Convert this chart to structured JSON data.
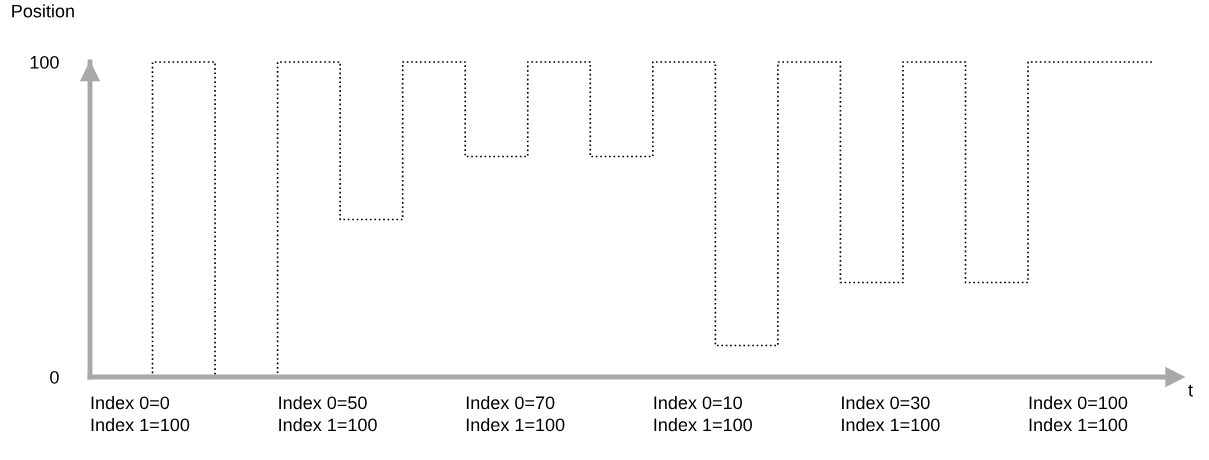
{
  "chart_data": {
    "type": "step",
    "ylabel": "Position",
    "xlabel": "t",
    "categories": [
      null,
      null,
      null,
      null,
      null,
      null,
      null,
      null,
      null,
      null,
      null,
      null,
      null,
      null,
      null,
      null,
      null,
      null
    ],
    "series": [
      {
        "color": "#000000",
        "values": [
          0,
          100,
          0,
          100,
          50,
          100,
          70,
          100,
          70,
          100,
          10,
          100,
          30,
          100,
          30,
          100,
          100,
          100
        ]
      }
    ],
    "ylim": [
      0,
      100
    ],
    "yticks": [
      0,
      100
    ],
    "line_style": "dotted",
    "grid": false,
    "legend": false,
    "annotations": [
      "Index 0=0\nIndex 1=100",
      "Index 0=50\nIndex 1=100",
      "Index 0=70\nIndex 1=100",
      "Index 0=10\nIndex 1=100",
      "Index 0=30\nIndex 1=100",
      "Index 0=100\nIndex 1=100"
    ]
  }
}
